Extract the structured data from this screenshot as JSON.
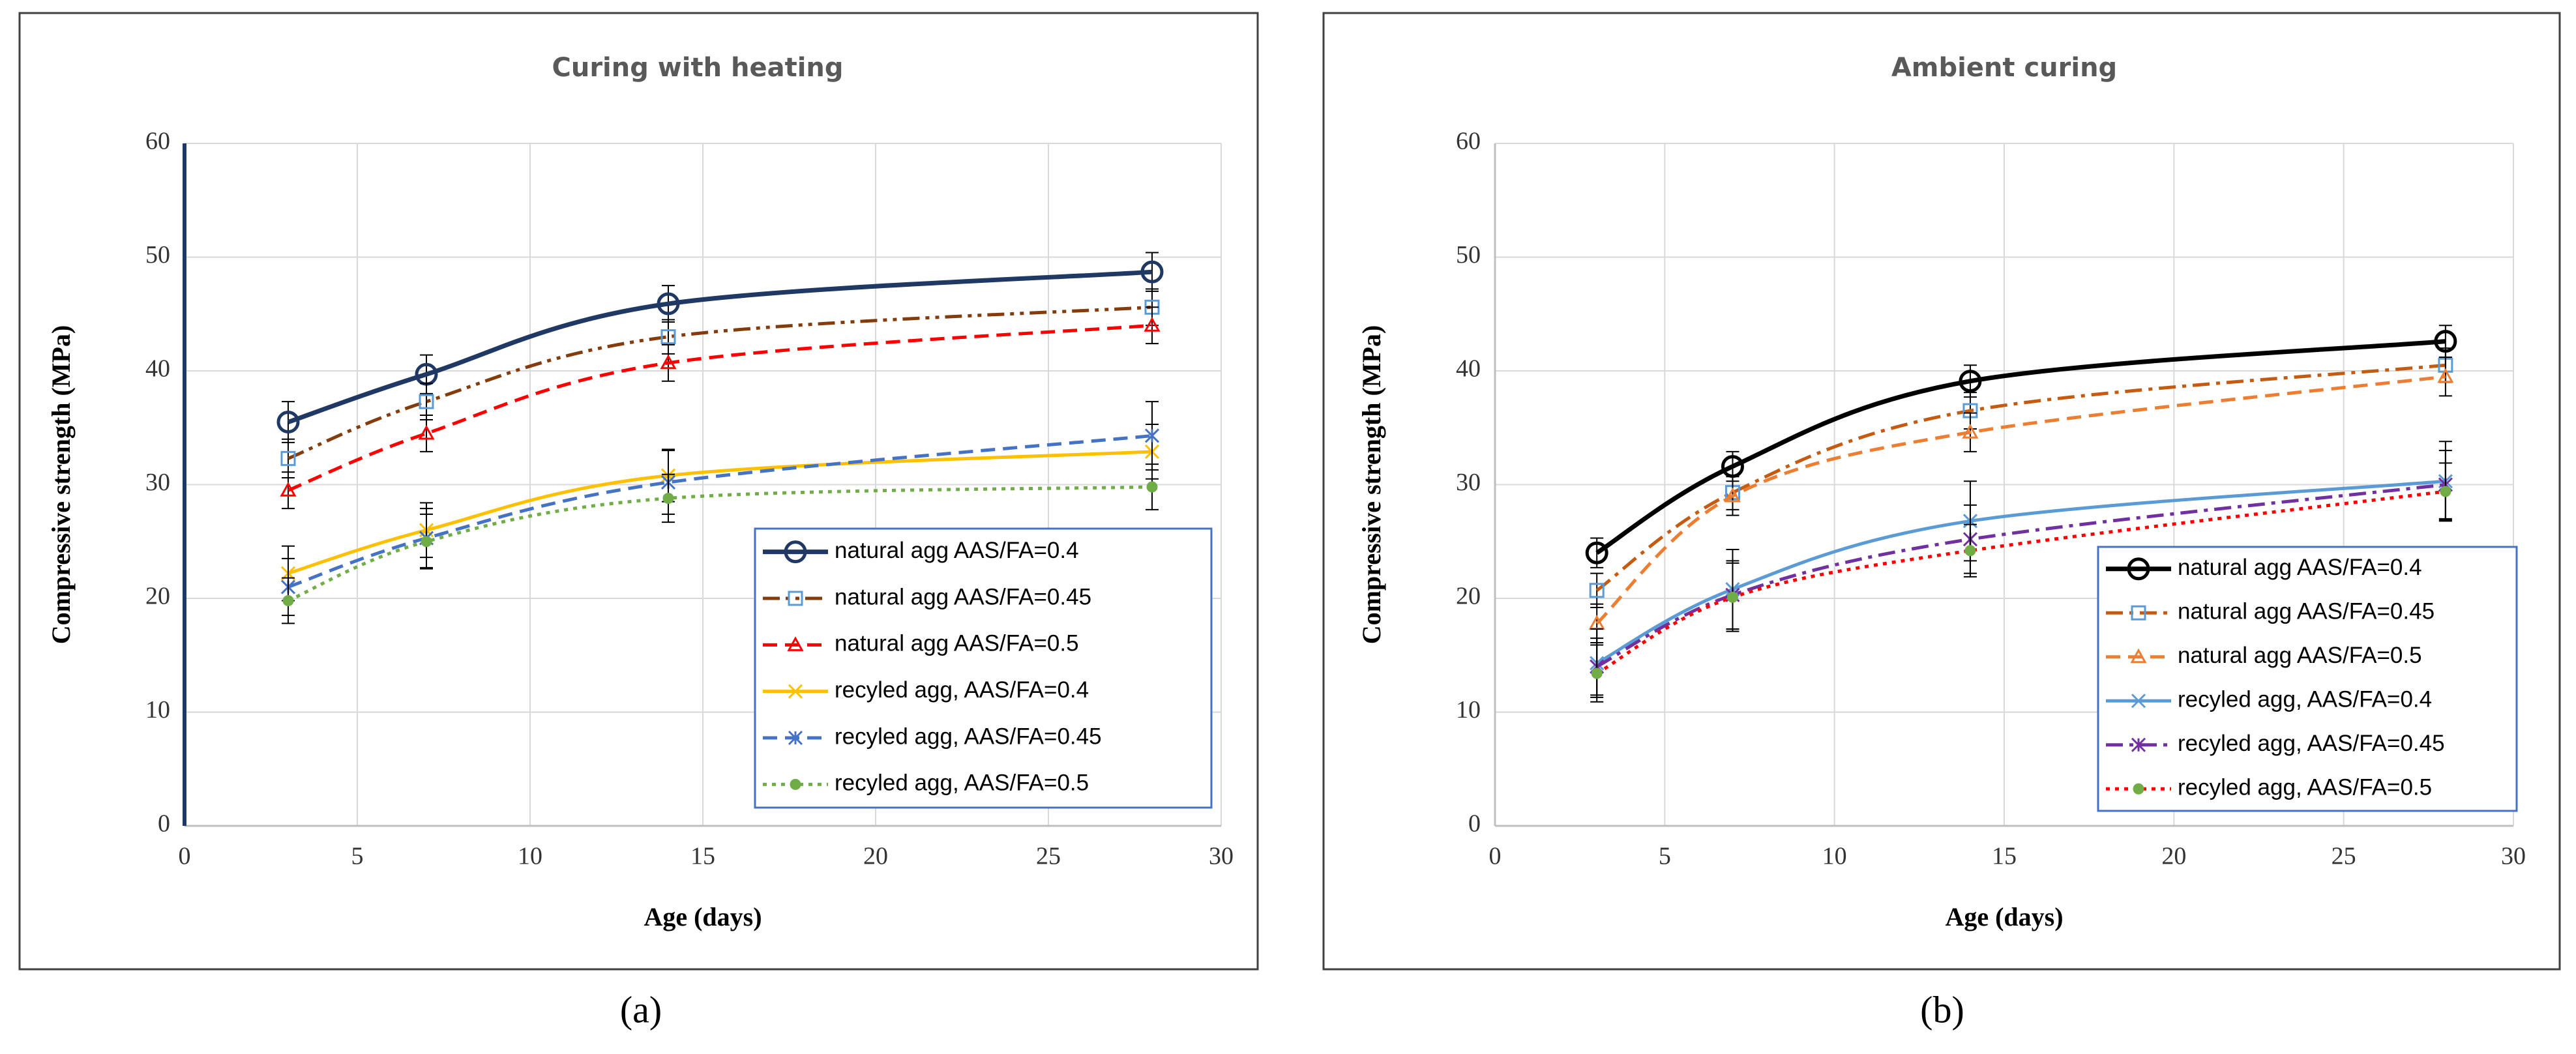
{
  "chart_data": [
    {
      "type": "line",
      "title": "Curing with heating",
      "caption": "(a)",
      "x_label": "Age (days)",
      "y_label": "Compressive strength (MPa)",
      "x": [
        3,
        7,
        14,
        28
      ],
      "xlim": [
        0,
        30
      ],
      "xticks": [
        0,
        5,
        10,
        15,
        20,
        25,
        30
      ],
      "ylim": [
        0,
        60
      ],
      "yticks": [
        0,
        10,
        20,
        30,
        40,
        50,
        60
      ],
      "grid": true,
      "legend": "lower right",
      "series": [
        {
          "name": "natural agg AAS/FA=0.4",
          "color": "#1f3864",
          "marker": "circle",
          "dash": "solid",
          "values": [
            35.5,
            39.7,
            45.9,
            48.7
          ],
          "errors": [
            1.8,
            1.7,
            1.6,
            1.7
          ]
        },
        {
          "name": "natural agg AAS/FA=0.45",
          "color": "#843c0c",
          "marker": "square",
          "dash": "dashdotdot",
          "values": [
            32.3,
            37.3,
            43.0,
            45.6
          ],
          "errors": [
            1.7,
            1.6,
            1.5,
            1.6
          ]
        },
        {
          "name": "natural agg AAS/FA=0.5",
          "color": "#ff0000",
          "marker": "triangle",
          "dash": "dash",
          "values": [
            29.5,
            34.5,
            40.7,
            44.0
          ],
          "errors": [
            1.6,
            1.6,
            1.6,
            1.6
          ]
        },
        {
          "name": "recyled agg, AAS/FA=0.4",
          "color": "#ffc000",
          "marker": "x",
          "dash": "solid",
          "values": [
            22.2,
            26.0,
            30.8,
            32.9
          ],
          "errors": [
            2.4,
            2.4,
            2.3,
            2.4
          ]
        },
        {
          "name": "recyled agg, AAS/FA=0.45",
          "color": "#4472c4",
          "marker": "star",
          "dash": "dash",
          "values": [
            21.0,
            25.3,
            30.2,
            34.3
          ],
          "errors": [
            2.5,
            2.6,
            2.8,
            3.0
          ]
        },
        {
          "name": "recyled agg, AAS/FA=0.5",
          "color": "#70ad47",
          "marker": "dot",
          "dash": "dot",
          "values": [
            19.8,
            25.0,
            28.8,
            29.8
          ],
          "errors": [
            2.0,
            2.4,
            2.1,
            2.0
          ]
        }
      ]
    },
    {
      "type": "line",
      "title": "Ambient curing",
      "caption": "(b)",
      "x_label": "Age (days)",
      "y_label": "Compressive strength (MPa)",
      "x": [
        3,
        7,
        14,
        28
      ],
      "xlim": [
        0,
        30
      ],
      "xticks": [
        0,
        5,
        10,
        15,
        20,
        25,
        30
      ],
      "ylim": [
        0,
        60
      ],
      "yticks": [
        0,
        10,
        20,
        30,
        40,
        50,
        60
      ],
      "grid": true,
      "legend": "lower right",
      "series": [
        {
          "name": "natural agg AAS/FA=0.4",
          "color": "#000000",
          "marker": "circle",
          "dash": "solid",
          "values": [
            24.0,
            31.6,
            39.1,
            42.6
          ],
          "errors": [
            1.3,
            1.3,
            1.4,
            1.4
          ]
        },
        {
          "name": "natural agg AAS/FA=0.45",
          "color": "#c55a11",
          "marker": "square",
          "dash": "dashdot",
          "values": [
            20.7,
            29.3,
            36.5,
            40.5
          ],
          "errors": [
            1.5,
            1.5,
            1.6,
            1.5
          ]
        },
        {
          "name": "natural agg AAS/FA=0.5",
          "color": "#ed7d31",
          "marker": "triangle",
          "dash": "dash",
          "values": [
            17.8,
            29.0,
            34.6,
            39.5
          ],
          "errors": [
            1.7,
            1.7,
            1.7,
            1.7
          ]
        },
        {
          "name": "recyled agg, AAS/FA=0.4",
          "color": "#5b9bd5",
          "marker": "x",
          "dash": "solid",
          "values": [
            14.3,
            20.8,
            26.8,
            30.3
          ],
          "errors": [
            3.0,
            3.5,
            3.5,
            3.5
          ]
        },
        {
          "name": "recyled agg, AAS/FA=0.45",
          "color": "#7030a0",
          "marker": "star",
          "dash": "dashdot",
          "values": [
            14.0,
            20.3,
            25.2,
            30.0
          ],
          "errors": [
            2.5,
            3.0,
            3.0,
            3.0
          ]
        },
        {
          "name": "recyled agg, AAS/FA=0.5",
          "color": "#ff0000",
          "marker": "dot",
          "dash": "dot",
          "values": [
            13.4,
            20.1,
            24.2,
            29.4
          ],
          "errors": [
            2.5,
            3.0,
            2.3,
            2.5
          ]
        }
      ]
    }
  ]
}
